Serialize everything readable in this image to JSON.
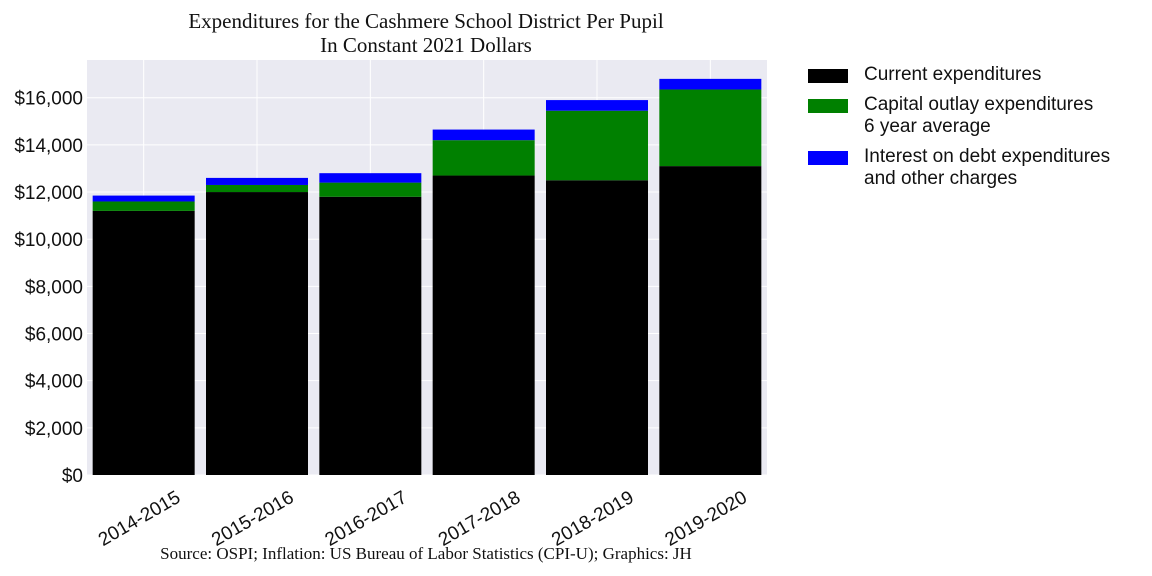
{
  "chart_data": {
    "type": "bar",
    "stacked": true,
    "title": "Expenditures for the Cashmere School District Per Pupil",
    "subtitle": "In Constant 2021 Dollars",
    "categories": [
      "2014-2015",
      "2015-2016",
      "2016-2017",
      "2017-2018",
      "2018-2019",
      "2019-2020"
    ],
    "series": [
      {
        "name": "Current expenditures",
        "color": "#000000",
        "values": [
          11200,
          12000,
          11800,
          12700,
          12500,
          13100
        ]
      },
      {
        "name": "Capital outlay expenditures\n6 year average",
        "color": "#008000",
        "values": [
          400,
          300,
          600,
          1500,
          2950,
          3250
        ]
      },
      {
        "name": "Interest on debt expenditures\nand other charges",
        "color": "#0000ff",
        "values": [
          250,
          300,
          400,
          450,
          450,
          450
        ]
      }
    ],
    "y_ticks": [
      "$0",
      "$2,000",
      "$4,000",
      "$6,000",
      "$8,000",
      "$10,000",
      "$12,000",
      "$14,000",
      "$16,000"
    ],
    "ylim": [
      0,
      17600
    ],
    "grid": true,
    "legend_position": "outside right",
    "caption": "Source: OSPI; Inflation: US Bureau of Labor Statistics (CPI-U); Graphics: JH",
    "background": "#eaeaf2",
    "grid_color": "#ffffff"
  }
}
